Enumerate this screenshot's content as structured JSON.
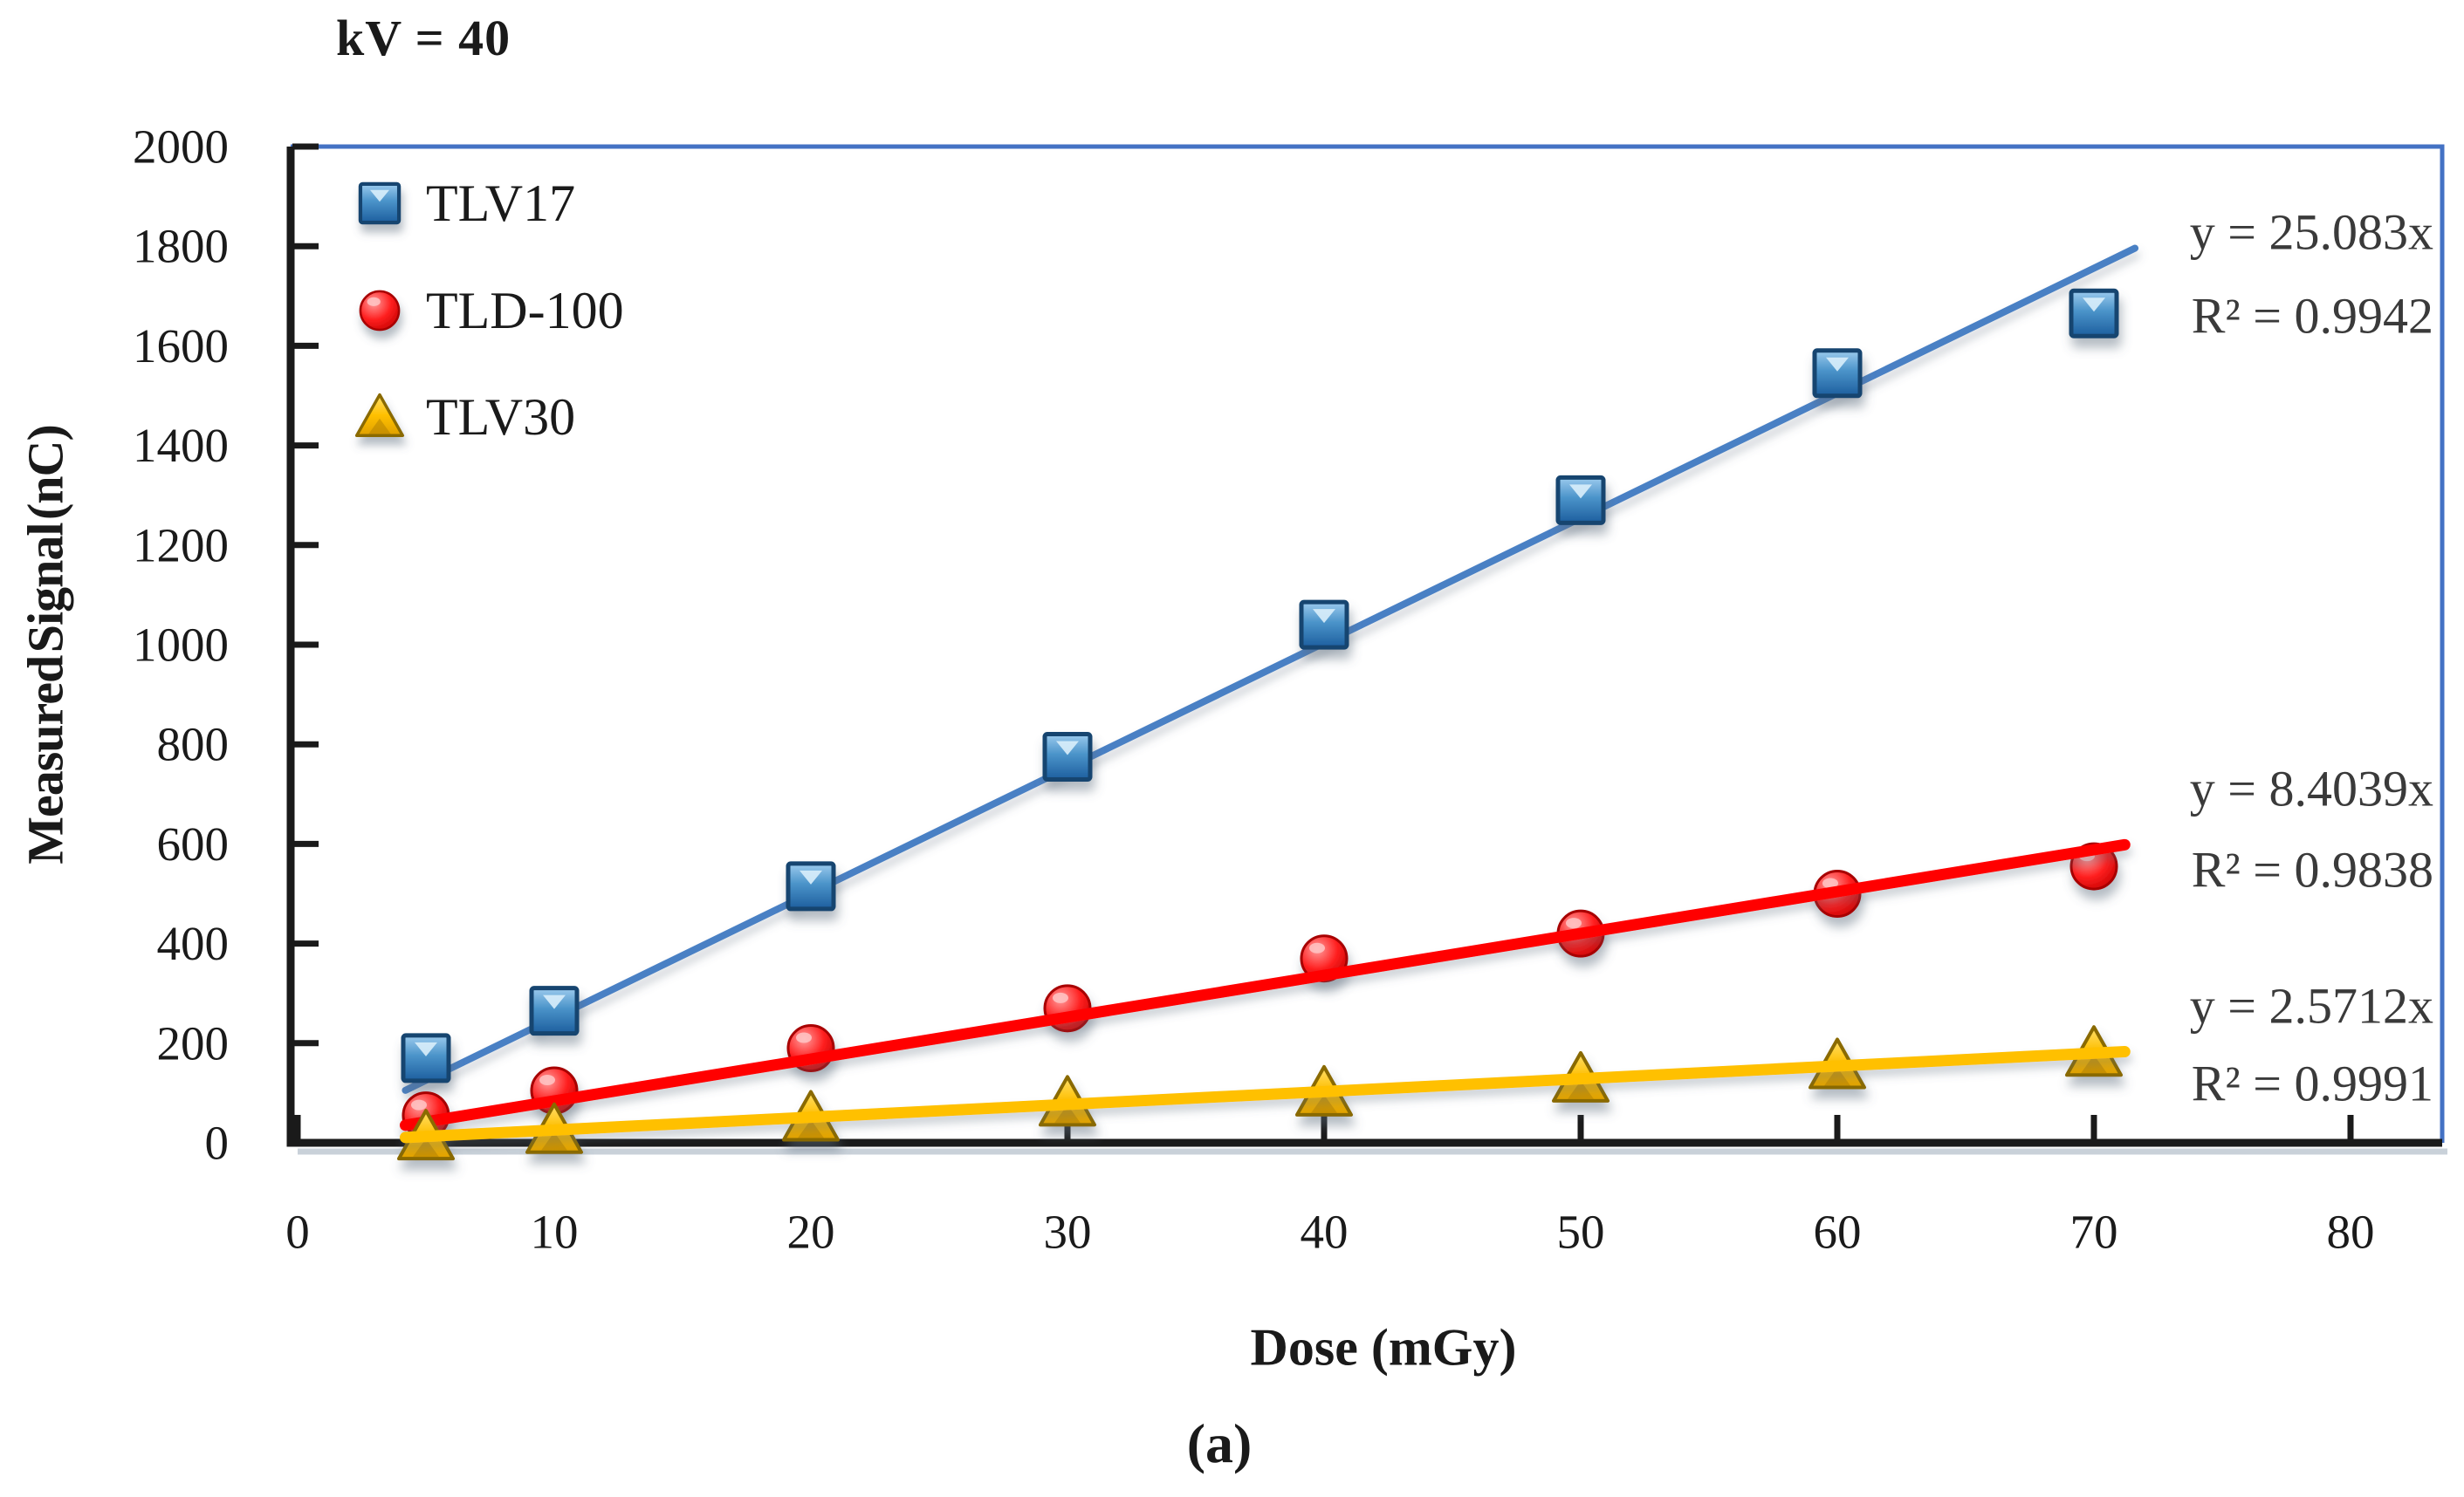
{
  "caption": "(a)",
  "colors": {
    "background": "#FFFFFF",
    "frame": "#4472C4",
    "axis": "#1A1A1A",
    "tick_text": "#1A1A1A",
    "equation_text": "#3A3A3A"
  },
  "chart_data": {
    "type": "scatter",
    "title": "kV = 40",
    "xlabel": "Dose (mGy)",
    "ylabel": "Measured Signal (nC)",
    "xlim": [
      0,
      83.5
    ],
    "ylim": [
      0,
      2000
    ],
    "x_ticks": [
      0,
      10,
      20,
      30,
      40,
      50,
      60,
      70,
      80
    ],
    "y_ticks": [
      0,
      200,
      400,
      600,
      800,
      1000,
      1200,
      1400,
      1600,
      1800,
      2000
    ],
    "grid": false,
    "legend_position": "inside-top-left",
    "doses_mGy": [
      5,
      10,
      20,
      30,
      40,
      50,
      60,
      70
    ],
    "series": [
      {
        "name": "TLV17",
        "marker": "square",
        "marker_color": "#2E75B6",
        "line_color": "#4A80C4",
        "values": [
          170,
          265,
          515,
          775,
          1040,
          1290,
          1545,
          1665
        ],
        "trendline": {
          "label": "y = 25.083x",
          "slope": 25.083,
          "r2_label": "R² = 0.9942",
          "r_squared": 0.9942,
          "x_start": 4.2,
          "x_end": 71.6
        }
      },
      {
        "name": "TLD-100",
        "marker": "circle",
        "marker_color": "#FF0000",
        "line_color": "#FF0000",
        "values": [
          55,
          105,
          190,
          270,
          370,
          420,
          500,
          555
        ],
        "trendline": {
          "label": "y = 8.4039x",
          "slope": 8.4039,
          "r2_label": "R² = 0.9838",
          "r_squared": 0.9838,
          "x_start": 4.2,
          "x_end": 71.2
        }
      },
      {
        "name": "TLV30",
        "marker": "triangle",
        "marker_color": "#FFC000",
        "line_color": "#FFC000",
        "values": [
          12,
          25,
          50,
          80,
          100,
          128,
          155,
          180
        ],
        "trendline": {
          "label": "y = 2.5712x",
          "slope": 2.5712,
          "r2_label": "R² = 0.9991",
          "r_squared": 0.9991,
          "x_start": 4.2,
          "x_end": 71.2
        }
      }
    ]
  }
}
